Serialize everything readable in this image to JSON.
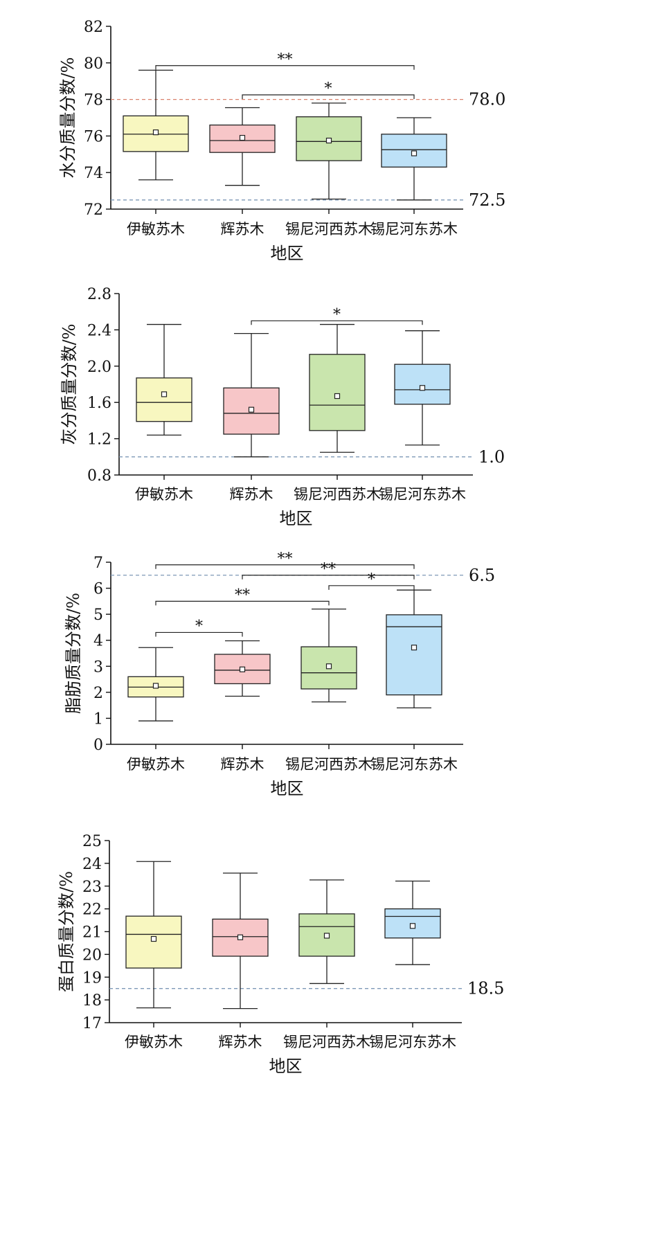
{
  "chart_data": [
    {
      "type": "box",
      "xlabel": "地区",
      "ylabel": "水分质量分数/%",
      "ylim": [
        72,
        82
      ],
      "yticks": [
        "72",
        "74",
        "76",
        "78",
        "80",
        "82"
      ],
      "categories": [
        "伊敏苏木",
        "辉苏木",
        "锡尼河西苏木",
        "锡尼河东苏木"
      ],
      "colors": [
        "#f8f7c0",
        "#f7c6c8",
        "#c9e5ad",
        "#bde1f7"
      ],
      "boxes": [
        {
          "min": 73.6,
          "q1": 75.15,
          "median": 76.1,
          "q3": 77.1,
          "max": 79.6,
          "mean": 76.2
        },
        {
          "min": 73.3,
          "q1": 75.1,
          "median": 75.75,
          "q3": 76.6,
          "max": 77.55,
          "mean": 75.9
        },
        {
          "min": 72.55,
          "q1": 74.65,
          "median": 75.7,
          "q3": 77.05,
          "max": 77.8,
          "mean": 75.75
        },
        {
          "min": 72.5,
          "q1": 74.3,
          "median": 75.25,
          "q3": 76.1,
          "max": 77.0,
          "mean": 75.05
        }
      ],
      "reference_lines": [
        {
          "value": 78.0,
          "label": "78.0",
          "color": "#d9826d"
        },
        {
          "value": 72.5,
          "label": "72.5",
          "color": "#7d98b6"
        }
      ],
      "significance": [
        {
          "from": 0,
          "to": 3,
          "label": "**",
          "level": 79.85
        },
        {
          "from": 1,
          "to": 3,
          "label": "*",
          "level": 78.25
        }
      ]
    },
    {
      "type": "box",
      "xlabel": "地区",
      "ylabel": "灰分质量分数/%",
      "ylim": [
        0.8,
        2.8
      ],
      "yticks": [
        "0.8",
        "1.2",
        "1.6",
        "2.0",
        "2.4",
        "2.8"
      ],
      "categories": [
        "伊敏苏木",
        "辉苏木",
        "锡尼河西苏木",
        "锡尼河东苏木"
      ],
      "colors": [
        "#f8f7c0",
        "#f7c6c8",
        "#c9e5ad",
        "#bde1f7"
      ],
      "boxes": [
        {
          "min": 1.24,
          "q1": 1.39,
          "median": 1.6,
          "q3": 1.87,
          "max": 2.46,
          "mean": 1.69
        },
        {
          "min": 1.0,
          "q1": 1.25,
          "median": 1.48,
          "q3": 1.76,
          "max": 2.36,
          "mean": 1.52
        },
        {
          "min": 1.05,
          "q1": 1.29,
          "median": 1.57,
          "q3": 2.13,
          "max": 2.46,
          "mean": 1.67
        },
        {
          "min": 1.13,
          "q1": 1.58,
          "median": 1.74,
          "q3": 2.02,
          "max": 2.39,
          "mean": 1.76
        }
      ],
      "reference_lines": [
        {
          "value": 1.0,
          "label": "1.0",
          "color": "#7d98b6"
        }
      ],
      "significance": [
        {
          "from": 1,
          "to": 3,
          "label": "*",
          "level": 2.5
        }
      ]
    },
    {
      "type": "box",
      "xlabel": "地区",
      "ylabel": "脂肪质量分数/%",
      "ylim": [
        0,
        7
      ],
      "yticks": [
        "0",
        "1",
        "2",
        "3",
        "4",
        "5",
        "6",
        "7"
      ],
      "categories": [
        "伊敏苏木",
        "辉苏木",
        "锡尼河西苏木",
        "锡尼河东苏木"
      ],
      "colors": [
        "#f8f7c0",
        "#f7c6c8",
        "#c9e5ad",
        "#bde1f7"
      ],
      "boxes": [
        {
          "min": 0.9,
          "q1": 1.82,
          "median": 2.2,
          "q3": 2.6,
          "max": 3.72,
          "mean": 2.25
        },
        {
          "min": 1.85,
          "q1": 2.33,
          "median": 2.85,
          "q3": 3.46,
          "max": 3.98,
          "mean": 2.88
        },
        {
          "min": 1.63,
          "q1": 2.13,
          "median": 2.75,
          "q3": 3.75,
          "max": 5.2,
          "mean": 3.0
        },
        {
          "min": 1.4,
          "q1": 1.9,
          "median": 4.52,
          "q3": 4.98,
          "max": 5.93,
          "mean": 3.72
        }
      ],
      "reference_lines": [
        {
          "value": 6.5,
          "label": "6.5",
          "color": "#7d98b6"
        }
      ],
      "significance": [
        {
          "from": 0,
          "to": 3,
          "label": "**",
          "level": 6.9
        },
        {
          "from": 1,
          "to": 3,
          "label": "**",
          "level": 6.5
        },
        {
          "from": 2,
          "to": 3,
          "label": "*",
          "level": 6.1
        },
        {
          "from": 0,
          "to": 2,
          "label": "**",
          "level": 5.5
        },
        {
          "from": 0,
          "to": 1,
          "label": "*",
          "level": 4.3
        }
      ]
    },
    {
      "type": "box",
      "xlabel": "地区",
      "ylabel": "蛋白质量分数/%",
      "ylim": [
        17,
        25
      ],
      "yticks": [
        "17",
        "18",
        "19",
        "20",
        "21",
        "22",
        "23",
        "24",
        "25"
      ],
      "categories": [
        "伊敏苏木",
        "辉苏木",
        "锡尼河西苏木",
        "锡尼河东苏木"
      ],
      "colors": [
        "#f8f7c0",
        "#f7c6c8",
        "#c9e5ad",
        "#bde1f7"
      ],
      "boxes": [
        {
          "min": 17.65,
          "q1": 19.4,
          "median": 20.88,
          "q3": 21.68,
          "max": 24.08,
          "mean": 20.68
        },
        {
          "min": 17.62,
          "q1": 19.92,
          "median": 20.78,
          "q3": 21.55,
          "max": 23.57,
          "mean": 20.75
        },
        {
          "min": 18.72,
          "q1": 19.92,
          "median": 21.22,
          "q3": 21.78,
          "max": 23.27,
          "mean": 20.82
        },
        {
          "min": 19.55,
          "q1": 20.72,
          "median": 21.67,
          "q3": 22.0,
          "max": 23.22,
          "mean": 21.25
        }
      ],
      "reference_lines": [
        {
          "value": 18.5,
          "label": "18.5",
          "color": "#7d98b6"
        }
      ],
      "significance": []
    }
  ]
}
